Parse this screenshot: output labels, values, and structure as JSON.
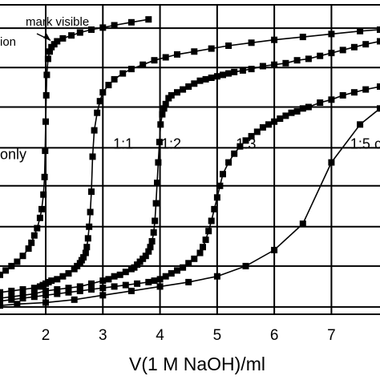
{
  "chart_data": {
    "type": "line",
    "xlabel": "V(1 M NaOH)/ml",
    "xlim": [
      1.2,
      7.85
    ],
    "ylim": [
      0,
      10.6
    ],
    "x_ticks": [
      2,
      3,
      4,
      5,
      6,
      7
    ],
    "x_tick_labels": [
      "2",
      "3",
      "4",
      "5",
      "6",
      "7"
    ],
    "y_gridlines": [
      0.25,
      1.65,
      3.0,
      4.4,
      5.7,
      7.1,
      8.45,
      9.8
    ],
    "grid": true,
    "marker": "square",
    "line_color": "#000000",
    "annotation": {
      "text_lines": [
        "mark visible",
        "ion"
      ],
      "points_to": [
        2.0,
        9.3
      ]
    },
    "series": [
      {
        "name": "only",
        "label_at": [
          1.2,
          5.45
        ],
        "x": [
          1.2,
          1.3,
          1.4,
          1.5,
          1.6,
          1.7,
          1.75,
          1.8,
          1.85,
          1.9,
          1.93,
          1.96,
          1.98,
          1.99,
          2.0,
          2.01,
          2.02,
          2.04,
          2.07,
          2.1,
          2.15,
          2.2,
          2.3,
          2.45,
          2.6,
          2.8,
          3.0,
          3.2,
          3.5,
          3.8
        ],
        "y": [
          1.35,
          1.5,
          1.65,
          1.8,
          2.0,
          2.25,
          2.45,
          2.7,
          2.95,
          3.3,
          3.6,
          4.1,
          4.7,
          5.6,
          6.6,
          7.5,
          8.2,
          8.75,
          9.0,
          9.15,
          9.25,
          9.35,
          9.45,
          9.55,
          9.65,
          9.75,
          9.82,
          9.9,
          10.0,
          10.1
        ]
      },
      {
        "name": "1:1",
        "label_at": [
          3.18,
          5.8
        ],
        "x": [
          1.2,
          1.4,
          1.6,
          1.8,
          1.9,
          1.95,
          2.0,
          2.05,
          2.1,
          2.2,
          2.3,
          2.4,
          2.5,
          2.55,
          2.6,
          2.63,
          2.66,
          2.7,
          2.72,
          2.74,
          2.76,
          2.78,
          2.8,
          2.82,
          2.85,
          2.9,
          2.95,
          3.0,
          3.1,
          3.2,
          3.35,
          3.5,
          3.7,
          3.9,
          4.1,
          4.3,
          4.6,
          4.9,
          5.2,
          5.6,
          6.0,
          6.5,
          7.0,
          7.5,
          7.85
        ],
        "y": [
          0.75,
          0.8,
          0.85,
          0.9,
          0.95,
          1.0,
          1.05,
          1.1,
          1.15,
          1.2,
          1.3,
          1.4,
          1.55,
          1.65,
          1.75,
          1.85,
          1.95,
          2.1,
          2.3,
          2.6,
          3.0,
          3.5,
          4.2,
          5.4,
          6.3,
          6.9,
          7.3,
          7.6,
          7.85,
          8.05,
          8.25,
          8.4,
          8.55,
          8.7,
          8.8,
          8.9,
          9.0,
          9.1,
          9.2,
          9.3,
          9.4,
          9.5,
          9.6,
          9.7,
          9.75
        ]
      },
      {
        "name": "1:2",
        "label_at": [
          4.02,
          5.8
        ],
        "x": [
          1.2,
          1.4,
          1.6,
          1.8,
          2.0,
          2.2,
          2.4,
          2.6,
          2.8,
          3.0,
          3.1,
          3.2,
          3.3,
          3.4,
          3.5,
          3.55,
          3.6,
          3.65,
          3.7,
          3.75,
          3.8,
          3.83,
          3.86,
          3.89,
          3.91,
          3.93,
          3.95,
          3.97,
          3.99,
          4.01,
          4.04,
          4.07,
          4.1,
          4.15,
          4.2,
          4.3,
          4.4,
          4.5,
          4.6,
          4.7,
          4.8,
          4.9,
          5.0,
          5.1,
          5.2,
          5.3,
          5.45,
          5.6,
          5.8,
          6.0,
          6.2,
          6.4,
          6.6,
          6.8,
          7.0,
          7.2,
          7.4,
          7.6,
          7.85
        ],
        "y": [
          0.55,
          0.6,
          0.65,
          0.7,
          0.8,
          0.85,
          0.9,
          0.95,
          1.05,
          1.15,
          1.2,
          1.3,
          1.35,
          1.45,
          1.55,
          1.6,
          1.7,
          1.8,
          1.9,
          2.0,
          2.15,
          2.3,
          2.5,
          2.8,
          3.2,
          3.8,
          4.5,
          5.2,
          5.9,
          6.5,
          6.85,
          7.05,
          7.2,
          7.4,
          7.5,
          7.6,
          7.7,
          7.8,
          7.9,
          8.0,
          8.05,
          8.1,
          8.15,
          8.2,
          8.25,
          8.3,
          8.35,
          8.4,
          8.5,
          8.55,
          8.6,
          8.7,
          8.75,
          8.85,
          8.95,
          9.05,
          9.15,
          9.25,
          9.35
        ]
      },
      {
        "name": "1:3",
        "label_at": [
          5.33,
          5.8
        ],
        "x": [
          1.2,
          1.4,
          1.6,
          1.8,
          2.0,
          2.2,
          2.4,
          2.6,
          2.8,
          3.0,
          3.2,
          3.4,
          3.6,
          3.8,
          3.9,
          4.0,
          4.1,
          4.2,
          4.3,
          4.4,
          4.5,
          4.6,
          4.7,
          4.75,
          4.8,
          4.85,
          4.9,
          4.95,
          5.0,
          5.05,
          5.1,
          5.2,
          5.3,
          5.4,
          5.5,
          5.6,
          5.7,
          5.8,
          5.9,
          6.0,
          6.1,
          6.2,
          6.3,
          6.4,
          6.5,
          6.6,
          6.8,
          7.0,
          7.2,
          7.4,
          7.6,
          7.85
        ],
        "y": [
          0.45,
          0.5,
          0.55,
          0.6,
          0.65,
          0.7,
          0.75,
          0.8,
          0.85,
          0.9,
          0.95,
          1.0,
          1.05,
          1.1,
          1.15,
          1.2,
          1.3,
          1.4,
          1.5,
          1.6,
          1.75,
          1.9,
          2.1,
          2.3,
          2.55,
          2.85,
          3.2,
          3.6,
          4.0,
          4.4,
          4.8,
          5.2,
          5.5,
          5.75,
          5.95,
          6.1,
          6.25,
          6.4,
          6.5,
          6.6,
          6.7,
          6.8,
          6.9,
          6.95,
          7.05,
          7.1,
          7.25,
          7.35,
          7.5,
          7.6,
          7.7,
          7.8
        ]
      },
      {
        "name": "1:5 c",
        "label_at": [
          7.33,
          5.8
        ],
        "x": [
          1.2,
          1.5,
          2.0,
          2.5,
          3.0,
          3.5,
          4.0,
          4.5,
          5.0,
          5.5,
          6.0,
          6.5,
          7.0,
          7.5,
          7.85
        ],
        "y": [
          0.3,
          0.35,
          0.4,
          0.5,
          0.65,
          0.8,
          0.95,
          1.1,
          1.3,
          1.65,
          2.2,
          3.1,
          5.2,
          6.5,
          7.05
        ]
      }
    ]
  }
}
